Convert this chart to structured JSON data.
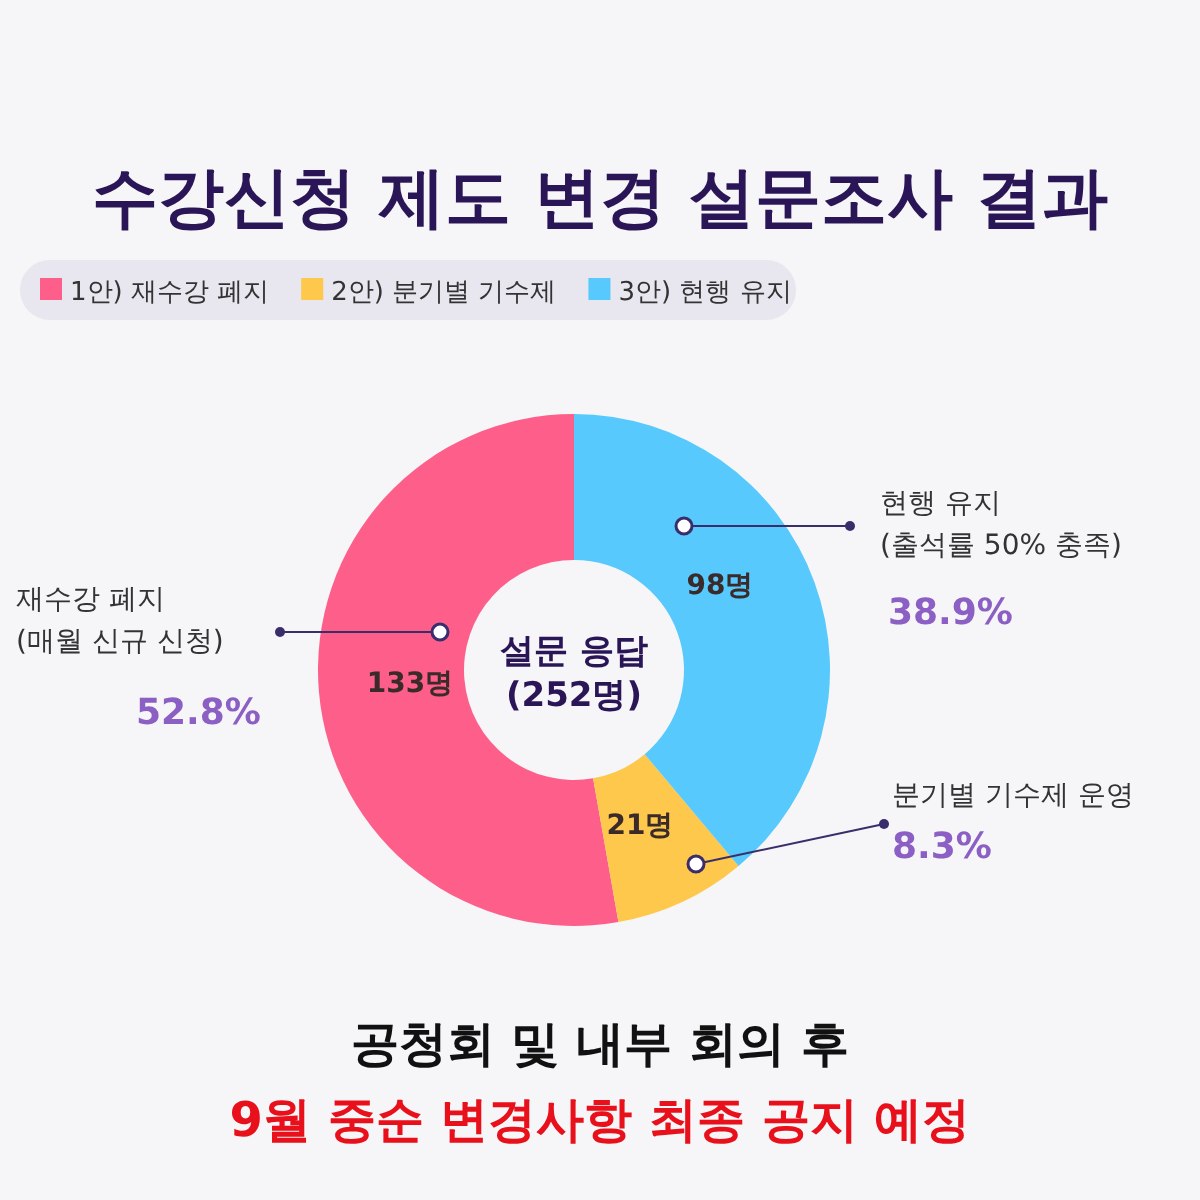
{
  "chart_data": {
    "type": "donut",
    "title": "수강신청 제도 변경 설문조사 결과",
    "categories": [
      "1안) 재수강 폐지",
      "2안) 분기별 기수제",
      "3안) 현행 유지"
    ],
    "values": [
      133,
      21,
      98
    ],
    "colors": [
      "#fd5f8a",
      "#fdc84b",
      "#57c9fc"
    ],
    "value_labels": [
      "133명",
      "21명",
      "98명"
    ],
    "legend": "top left",
    "annotations": [
      "설문 응답\n(252명)",
      "재수강 폐지\n(매월 신규 신청)",
      "52.8%",
      "분기별 기수제 운영",
      "8.3%",
      "현행 유지\n(출석률 50% 충족)",
      "38.9%",
      "공청회 및 내부 회의 후",
      "9월 중순 변경사항 최종 공지 예정"
    ]
  }
}
